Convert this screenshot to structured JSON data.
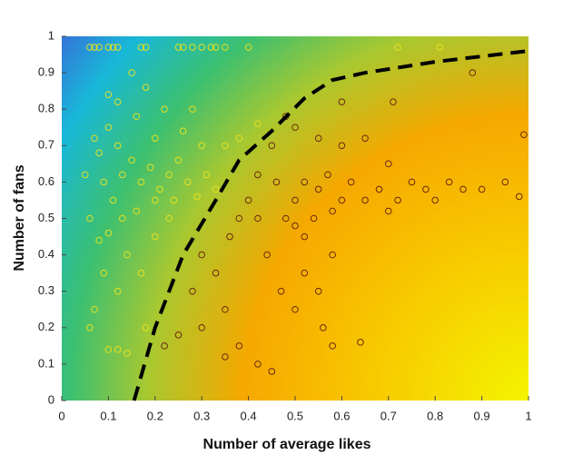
{
  "chart_data": {
    "type": "scatter",
    "xlabel": "Number of average likes",
    "ylabel": "Number of fans",
    "xlim": [
      0,
      1
    ],
    "ylim": [
      0,
      1
    ],
    "xticks": [
      0,
      0.1,
      0.2,
      0.3,
      0.4,
      0.5,
      0.6,
      0.7,
      0.8,
      0.9,
      1
    ],
    "yticks": [
      0,
      0.1,
      0.2,
      0.3,
      0.4,
      0.5,
      0.6,
      0.7,
      0.8,
      0.9,
      1
    ],
    "series": [
      {
        "color": "#e6e020",
        "x": [
          0.06,
          0.07,
          0.08,
          0.1,
          0.11,
          0.12,
          0.17,
          0.18,
          0.25,
          0.26,
          0.28,
          0.3,
          0.32,
          0.33,
          0.35,
          0.4,
          0.72,
          0.81,
          0.07,
          0.08,
          0.1,
          0.12,
          0.09,
          0.11,
          0.13,
          0.15,
          0.17,
          0.19,
          0.21,
          0.23,
          0.25,
          0.27,
          0.29,
          0.31,
          0.33,
          0.3,
          0.26,
          0.2,
          0.16,
          0.12,
          0.1,
          0.22,
          0.28,
          0.35,
          0.38,
          0.42,
          0.06,
          0.08,
          0.1,
          0.13,
          0.16,
          0.14,
          0.09,
          0.12,
          0.07,
          0.06,
          0.1,
          0.12,
          0.14,
          0.18,
          0.17,
          0.2,
          0.23,
          0.18,
          0.15,
          0.2,
          0.24,
          0.05
        ],
        "y": [
          0.97,
          0.97,
          0.97,
          0.97,
          0.97,
          0.97,
          0.97,
          0.97,
          0.97,
          0.97,
          0.97,
          0.97,
          0.97,
          0.97,
          0.97,
          0.97,
          0.97,
          0.97,
          0.72,
          0.68,
          0.75,
          0.7,
          0.6,
          0.55,
          0.62,
          0.66,
          0.6,
          0.64,
          0.58,
          0.62,
          0.66,
          0.6,
          0.56,
          0.62,
          0.58,
          0.7,
          0.74,
          0.72,
          0.78,
          0.82,
          0.84,
          0.8,
          0.8,
          0.7,
          0.72,
          0.76,
          0.5,
          0.44,
          0.46,
          0.5,
          0.52,
          0.4,
          0.35,
          0.3,
          0.25,
          0.2,
          0.14,
          0.14,
          0.13,
          0.2,
          0.35,
          0.45,
          0.5,
          0.86,
          0.9,
          0.55,
          0.55,
          0.62
        ]
      },
      {
        "color": "#6b2a10",
        "x": [
          0.38,
          0.4,
          0.36,
          0.42,
          0.3,
          0.28,
          0.33,
          0.35,
          0.3,
          0.25,
          0.22,
          0.38,
          0.42,
          0.45,
          0.35,
          0.48,
          0.5,
          0.52,
          0.55,
          0.57,
          0.6,
          0.62,
          0.58,
          0.54,
          0.5,
          0.65,
          0.68,
          0.7,
          0.72,
          0.75,
          0.78,
          0.8,
          0.83,
          0.86,
          0.9,
          0.95,
          0.98,
          0.99,
          0.88,
          0.6,
          0.55,
          0.45,
          0.5,
          0.65,
          0.7,
          0.48,
          0.52,
          0.55,
          0.58,
          0.56,
          0.58,
          0.64,
          0.5,
          0.52,
          0.6,
          0.71,
          0.42,
          0.46,
          0.44,
          0.47
        ],
        "y": [
          0.5,
          0.55,
          0.45,
          0.5,
          0.4,
          0.3,
          0.35,
          0.25,
          0.2,
          0.18,
          0.15,
          0.15,
          0.1,
          0.08,
          0.12,
          0.5,
          0.55,
          0.6,
          0.58,
          0.62,
          0.55,
          0.6,
          0.52,
          0.5,
          0.48,
          0.55,
          0.58,
          0.52,
          0.55,
          0.6,
          0.58,
          0.55,
          0.6,
          0.58,
          0.58,
          0.6,
          0.56,
          0.73,
          0.9,
          0.7,
          0.72,
          0.7,
          0.75,
          0.72,
          0.65,
          0.78,
          0.35,
          0.3,
          0.4,
          0.2,
          0.15,
          0.16,
          0.25,
          0.45,
          0.82,
          0.82,
          0.62,
          0.6,
          0.4,
          0.3
        ]
      }
    ],
    "boundary": {
      "color": "#000000",
      "dashed": true,
      "x": [
        0.155,
        0.2,
        0.26,
        0.33,
        0.38,
        0.45,
        0.52,
        0.58,
        0.65,
        0.8,
        1.0
      ],
      "y": [
        0,
        0.2,
        0.4,
        0.55,
        0.66,
        0.74,
        0.83,
        0.88,
        0.9,
        0.93,
        0.96
      ]
    }
  }
}
